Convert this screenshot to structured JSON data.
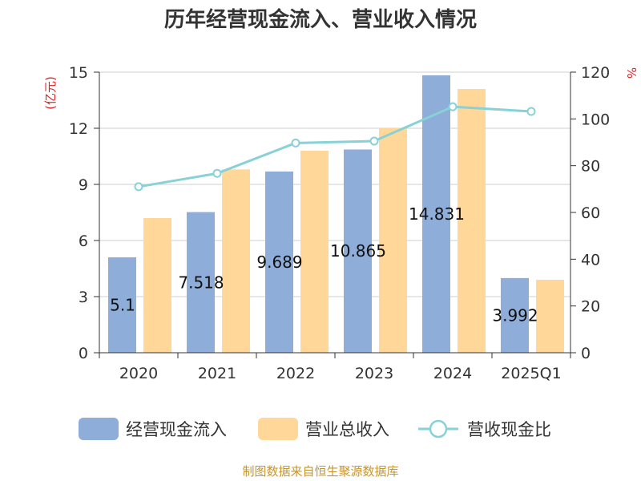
{
  "chart_data": {
    "type": "bar",
    "title": "历年经营现金流入、营业收入情况",
    "categories": [
      "2020",
      "2021",
      "2022",
      "2023",
      "2024",
      "2025Q1"
    ],
    "y_left": {
      "unit": "(亿元)",
      "ylim": [
        0,
        15
      ],
      "ticks": [
        "0",
        "3",
        "6",
        "9",
        "12",
        "15"
      ]
    },
    "y_right": {
      "unit": "%",
      "ylim": [
        0,
        120
      ],
      "ticks": [
        "0",
        "20",
        "40",
        "60",
        "80",
        "100",
        "120"
      ]
    },
    "series": [
      {
        "name": "经营现金流入",
        "type": "bar",
        "axis": "left",
        "color": "#8eadd9",
        "values": [
          5.1,
          7.518,
          9.689,
          10.865,
          14.831,
          3.992
        ],
        "labels": [
          "5.1",
          "7.518",
          "9.689",
          "10.865",
          "14.831",
          "3.992"
        ]
      },
      {
        "name": "营业总收入",
        "type": "bar",
        "axis": "left",
        "color": "#ffd899",
        "values": [
          7.2,
          9.8,
          10.8,
          12.0,
          14.1,
          3.9
        ]
      },
      {
        "name": "营收现金比",
        "type": "line",
        "axis": "right",
        "color": "#88d1d6",
        "values": [
          71,
          76.7,
          89.7,
          90.5,
          105.2,
          103.2
        ]
      }
    ],
    "grid": true,
    "legend": "bottom"
  },
  "source": "制图数据来自恒生聚源数据库"
}
